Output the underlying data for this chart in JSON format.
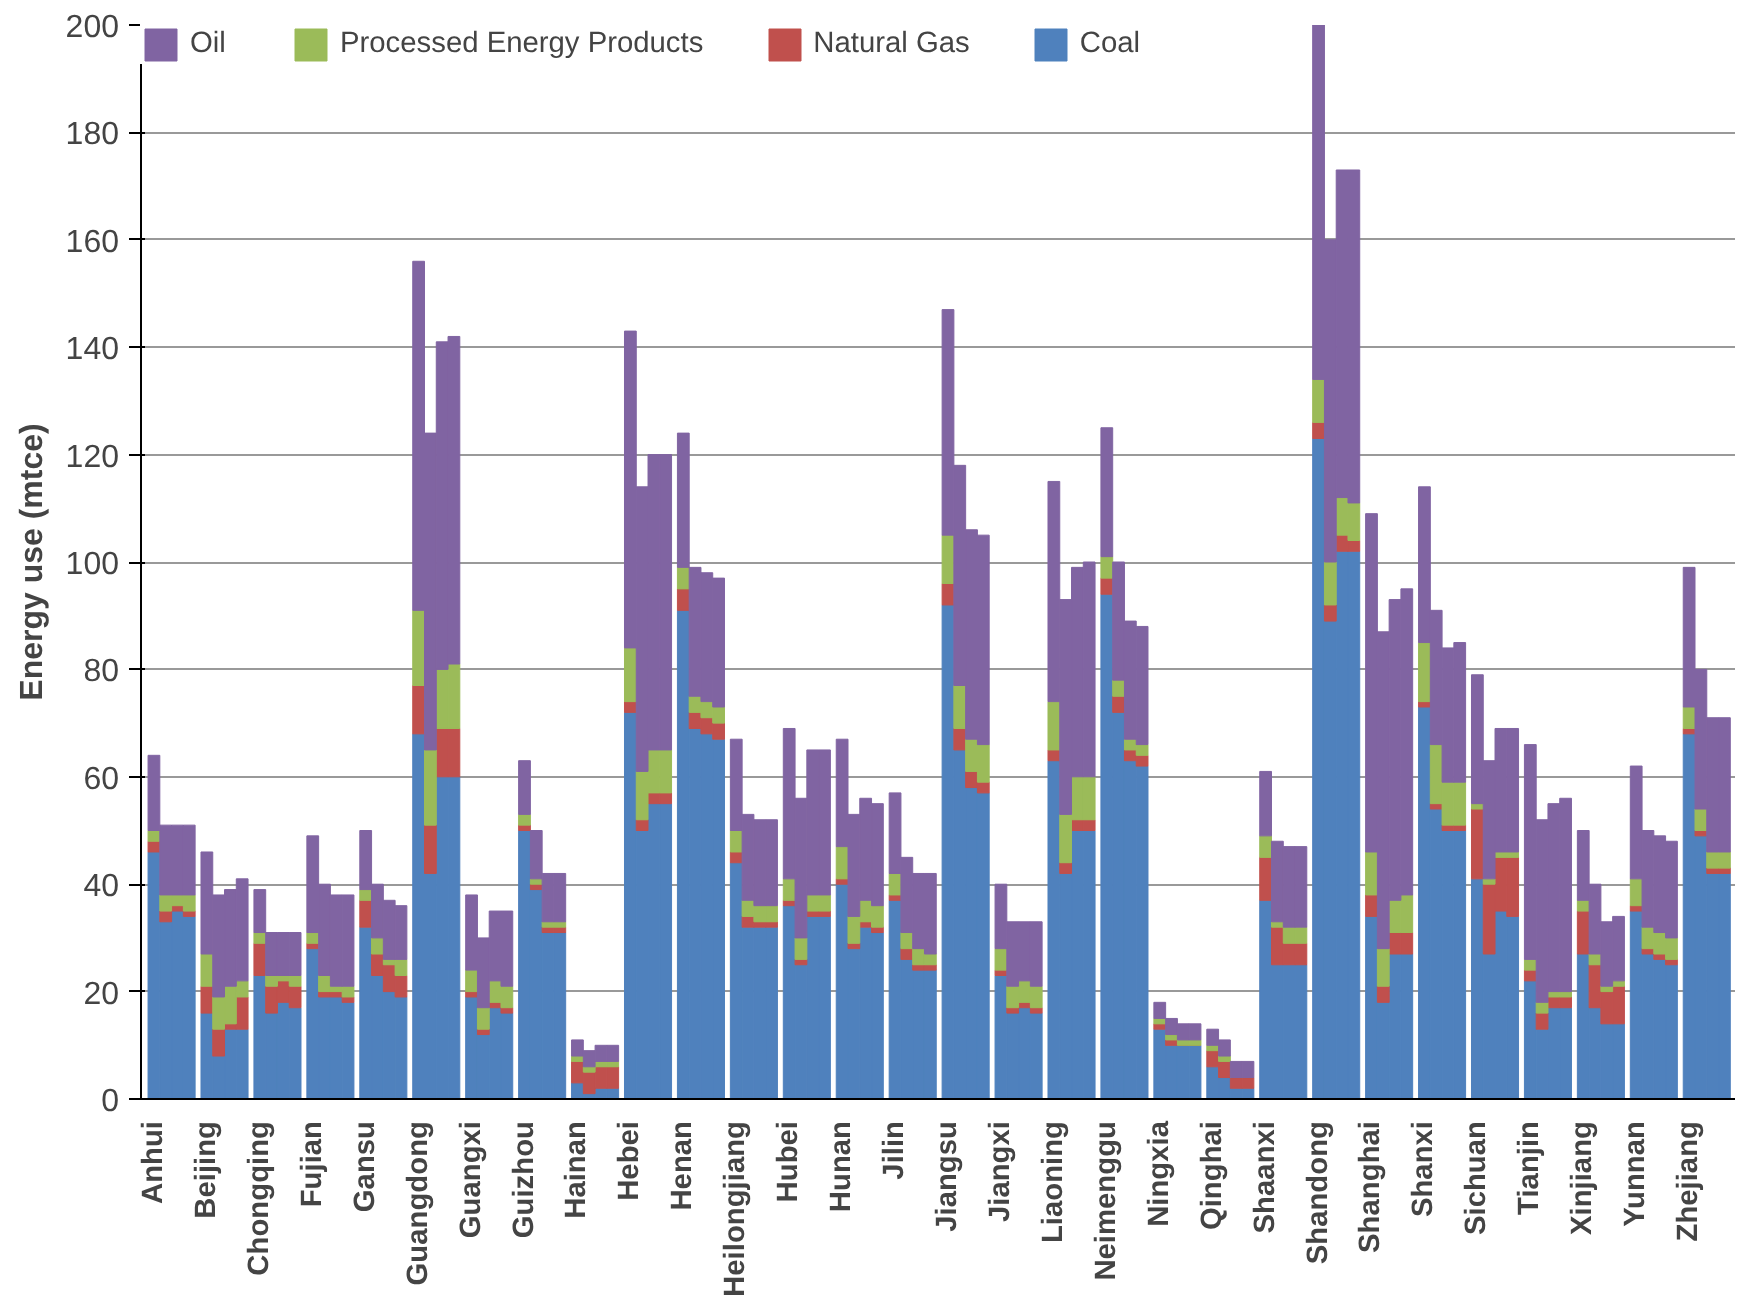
{
  "chart_data": {
    "type": "bar",
    "stacked": true,
    "ylabel": "Energy use (mtce)",
    "ylim": [
      0,
      200
    ],
    "yticks": [
      0,
      20,
      40,
      60,
      80,
      100,
      120,
      140,
      160,
      180,
      200
    ],
    "grid": "y",
    "legend": "top",
    "categories": [
      "Anhui",
      null,
      null,
      null,
      "Beijing",
      null,
      null,
      null,
      "Chongqing",
      null,
      null,
      null,
      "Fujian",
      null,
      null,
      null,
      "Gansu",
      null,
      null,
      null,
      "Guangdong",
      null,
      null,
      null,
      "Guangxi",
      null,
      null,
      null,
      "Guizhou",
      null,
      null,
      null,
      "Hainan",
      null,
      null,
      null,
      "Hebei",
      null,
      null,
      null,
      "Henan",
      null,
      null,
      null,
      "Heilongjiang",
      null,
      null,
      null,
      "Hubei",
      null,
      null,
      null,
      "Hunan",
      null,
      null,
      null,
      "Jilin",
      null,
      null,
      null,
      "Jiangsu",
      null,
      null,
      null,
      "Jiangxi",
      null,
      null,
      null,
      "Liaoning",
      null,
      null,
      null,
      "Neimenggu",
      null,
      null,
      null,
      "Ningxia",
      null,
      null,
      null,
      "Qinghai",
      null,
      null,
      null,
      "Shaanxi",
      null,
      null,
      null,
      "Shandong",
      null,
      null,
      null,
      "Shanghai",
      null,
      null,
      null,
      "Shanxi",
      null,
      null,
      null,
      "Sichuan",
      null,
      null,
      null,
      "Tianjin",
      null,
      null,
      null,
      "Xinjiang",
      null,
      null,
      null,
      "Yunnan",
      null,
      null,
      null,
      "Zhejiang",
      null,
      null,
      null
    ],
    "series": [
      {
        "name": "Coal",
        "color": "#4f81bd",
        "values": [
          46,
          33,
          35,
          34,
          16,
          8,
          13,
          13,
          23,
          16,
          18,
          17,
          28,
          19,
          19,
          18,
          32,
          23,
          20,
          19,
          68,
          42,
          60,
          60,
          19,
          12,
          17,
          16,
          50,
          39,
          31,
          31,
          3,
          1,
          2,
          2,
          72,
          50,
          55,
          55,
          91,
          69,
          68,
          67,
          44,
          32,
          32,
          32,
          36,
          25,
          34,
          34,
          40,
          28,
          32,
          31,
          37,
          26,
          24,
          24,
          92,
          65,
          58,
          57,
          23,
          16,
          17,
          16,
          63,
          42,
          50,
          50,
          94,
          72,
          63,
          62,
          13,
          10,
          10,
          10,
          6,
          4,
          2,
          2,
          37,
          25,
          25,
          25,
          123,
          89,
          102,
          102,
          34,
          18,
          27,
          27,
          73,
          54,
          50,
          50,
          41,
          27,
          35,
          34,
          22,
          13,
          17,
          17,
          27,
          17,
          14,
          14,
          35,
          27,
          26,
          25,
          68,
          49,
          42,
          42
        ]
      },
      {
        "name": "Natural Gas",
        "color": "#c0504d",
        "values": [
          2,
          2,
          1,
          1,
          5,
          5,
          1,
          6,
          6,
          5,
          4,
          4,
          1,
          1,
          1,
          1,
          5,
          4,
          5,
          4,
          9,
          9,
          9,
          9,
          1,
          1,
          1,
          1,
          1,
          1,
          1,
          1,
          4,
          4,
          4,
          4,
          2,
          2,
          2,
          2,
          4,
          3,
          3,
          3,
          2,
          2,
          1,
          1,
          1,
          1,
          1,
          1,
          1,
          1,
          1,
          1,
          1,
          2,
          1,
          1,
          4,
          4,
          3,
          2,
          1,
          1,
          1,
          1,
          2,
          2,
          2,
          2,
          3,
          3,
          2,
          2,
          1,
          1,
          0,
          0,
          3,
          3,
          2,
          2,
          8,
          7,
          4,
          4,
          3,
          3,
          3,
          2,
          4,
          3,
          4,
          4,
          1,
          1,
          1,
          1,
          13,
          13,
          10,
          11,
          2,
          3,
          2,
          2,
          8,
          8,
          6,
          7,
          1,
          1,
          1,
          1,
          1,
          1,
          1,
          1
        ]
      },
      {
        "name": "Processed Energy Products",
        "color": "#9bbb59",
        "values": [
          2,
          3,
          2,
          3,
          6,
          6,
          7,
          3,
          2,
          2,
          1,
          2,
          2,
          3,
          1,
          2,
          2,
          3,
          1,
          3,
          14,
          14,
          11,
          12,
          4,
          4,
          4,
          4,
          2,
          1,
          1,
          1,
          1,
          1,
          1,
          1,
          10,
          9,
          8,
          8,
          4,
          3,
          3,
          3,
          4,
          3,
          3,
          3,
          4,
          4,
          3,
          3,
          6,
          5,
          4,
          4,
          4,
          3,
          3,
          2,
          9,
          8,
          6,
          7,
          4,
          4,
          4,
          4,
          9,
          9,
          8,
          8,
          4,
          3,
          2,
          2,
          1,
          1,
          1,
          1,
          1,
          1,
          0,
          0,
          4,
          1,
          3,
          3,
          8,
          8,
          7,
          7,
          8,
          7,
          6,
          7,
          11,
          11,
          8,
          8,
          1,
          1,
          1,
          1,
          2,
          2,
          1,
          1,
          2,
          2,
          1,
          1,
          5,
          4,
          4,
          4,
          4,
          4,
          3,
          3
        ]
      },
      {
        "name": "Oil",
        "color": "#8064a2",
        "values": [
          14,
          13,
          13,
          13,
          19,
          19,
          18,
          19,
          8,
          8,
          8,
          8,
          18,
          17,
          17,
          17,
          11,
          10,
          11,
          10,
          65,
          59,
          61,
          61,
          14,
          13,
          13,
          14,
          10,
          9,
          9,
          9,
          3,
          3,
          3,
          3,
          59,
          53,
          55,
          55,
          25,
          24,
          24,
          24,
          17,
          16,
          16,
          16,
          28,
          26,
          27,
          27,
          20,
          19,
          19,
          19,
          15,
          14,
          14,
          15,
          42,
          41,
          39,
          39,
          12,
          12,
          11,
          12,
          41,
          40,
          39,
          40,
          24,
          22,
          22,
          22,
          3,
          3,
          3,
          3,
          3,
          3,
          3,
          3,
          12,
          15,
          15,
          15,
          66,
          60,
          61,
          62,
          63,
          59,
          56,
          57,
          29,
          25,
          25,
          26,
          24,
          22,
          23,
          23,
          40,
          34,
          35,
          36,
          13,
          13,
          12,
          12,
          21,
          18,
          18,
          18,
          26,
          26,
          25,
          25
        ]
      }
    ]
  }
}
